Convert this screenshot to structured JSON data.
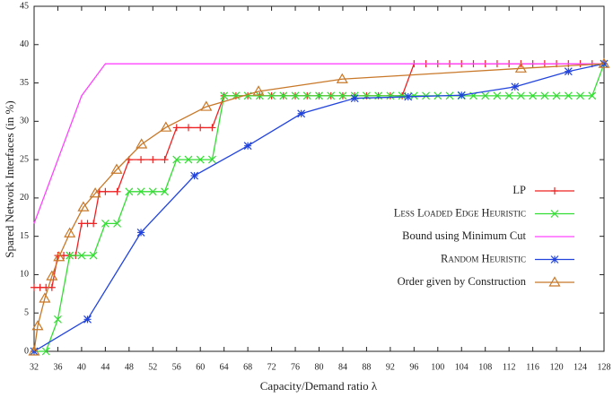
{
  "chart_data": {
    "type": "line",
    "x_label": "Capacity/Demand ratio λ",
    "y_label": "Spared Network Interfaces (in %)",
    "xlim": [
      32,
      128
    ],
    "xticks": [
      32,
      36,
      40,
      44,
      48,
      52,
      56,
      60,
      64,
      68,
      72,
      76,
      80,
      84,
      88,
      92,
      96,
      100,
      104,
      108,
      112,
      116,
      120,
      124,
      128
    ],
    "ylim": [
      0,
      45
    ],
    "yticks": [
      0,
      5,
      10,
      15,
      20,
      25,
      30,
      35,
      40,
      45
    ],
    "legend": "right-middle",
    "series": [
      {
        "name": "LP",
        "color": "#ee2222",
        "marker": "plus",
        "x": [
          32,
          33,
          34,
          35,
          36,
          37,
          38,
          39,
          40,
          41,
          42,
          43,
          44,
          46,
          48,
          50,
          52,
          54,
          56,
          58,
          60,
          62,
          64,
          66,
          68,
          70,
          72,
          74,
          76,
          78,
          80,
          82,
          84,
          86,
          88,
          90,
          92,
          94,
          96,
          98,
          100,
          102,
          104,
          106,
          108,
          110,
          112,
          114,
          116,
          118,
          120,
          122,
          124,
          126,
          128
        ],
        "values": [
          8.33,
          8.33,
          8.33,
          8.33,
          12.5,
          12.5,
          12.5,
          12.5,
          16.67,
          16.67,
          16.67,
          20.83,
          20.83,
          20.83,
          25,
          25,
          25,
          25,
          29.17,
          29.17,
          29.17,
          29.17,
          33.33,
          33.33,
          33.33,
          33.33,
          33.33,
          33.33,
          33.33,
          33.33,
          33.33,
          33.33,
          33.33,
          33.33,
          33.33,
          33.33,
          33.33,
          33.33,
          37.5,
          37.5,
          37.5,
          37.5,
          37.5,
          37.5,
          37.5,
          37.5,
          37.5,
          37.5,
          37.5,
          37.5,
          37.5,
          37.5,
          37.5,
          37.5,
          37.5
        ]
      },
      {
        "name": "Less Loaded Edge Heuristic",
        "color": "#33dd33",
        "marker": "cross",
        "smallcaps": true,
        "x": [
          32,
          34,
          36,
          38,
          40,
          42,
          44,
          46,
          48,
          50,
          52,
          54,
          56,
          58,
          60,
          62,
          64,
          66,
          68,
          70,
          72,
          74,
          76,
          78,
          80,
          82,
          84,
          86,
          88,
          90,
          92,
          94,
          96,
          98,
          100,
          102,
          104,
          106,
          108,
          110,
          112,
          114,
          116,
          118,
          120,
          122,
          124,
          126,
          128
        ],
        "values": [
          0,
          0,
          4.17,
          12.5,
          12.5,
          12.5,
          16.67,
          16.67,
          20.83,
          20.83,
          20.83,
          20.83,
          25,
          25,
          25,
          25,
          33.33,
          33.33,
          33.33,
          33.33,
          33.33,
          33.33,
          33.33,
          33.33,
          33.33,
          33.33,
          33.33,
          33.33,
          33.33,
          33.33,
          33.33,
          33.33,
          33.33,
          33.33,
          33.33,
          33.33,
          33.33,
          33.33,
          33.33,
          33.33,
          33.33,
          33.33,
          33.33,
          33.33,
          33.33,
          33.33,
          33.33,
          33.33,
          37.5
        ]
      },
      {
        "name": "Bound using Minimum Cut",
        "color": "#ff44ff",
        "x": [
          32,
          40,
          44,
          128
        ],
        "values": [
          16.67,
          33.33,
          37.5,
          37.5
        ]
      },
      {
        "name": "Random Heuristic",
        "color": "#2244dd",
        "marker": "star",
        "smallcaps": true,
        "x": [
          32,
          41,
          50,
          59,
          68,
          77,
          86,
          95,
          104,
          113,
          122,
          128
        ],
        "values": [
          0,
          4.17,
          15.5,
          22.9,
          26.8,
          31,
          33,
          33.2,
          33.4,
          34.5,
          36.5,
          37.5
        ]
      },
      {
        "name": "Order given by Construction",
        "color": "#c87828",
        "marker": "triangle",
        "x": [
          32,
          32.6,
          33.8,
          35,
          36.2,
          38,
          40.3,
          42.3,
          45.9,
          50.1,
          54.2,
          61,
          69.8,
          83.9,
          114,
          128
        ],
        "values": [
          0,
          3.3,
          6.9,
          9.8,
          12.3,
          15.4,
          18.8,
          20.6,
          23.7,
          27,
          29.2,
          31.9,
          33.9,
          35.5,
          36.9,
          37.5
        ]
      }
    ]
  }
}
